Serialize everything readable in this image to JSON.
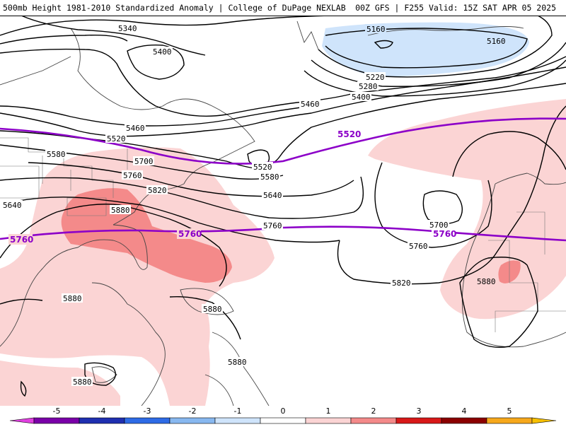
{
  "header": {
    "left": "500mb Height 1981-2010 Standardized Anomaly | College of DuPage NEXLAB",
    "right": "00Z GFS | F255 Valid: 15Z SAT APR 05 2025"
  },
  "contour_labels": [
    {
      "text": "5340"
    },
    {
      "text": "5400"
    },
    {
      "text": "5460"
    },
    {
      "text": "5520"
    },
    {
      "text": "5580"
    },
    {
      "text": "5700"
    },
    {
      "text": "5760"
    },
    {
      "text": "5820"
    },
    {
      "text": "5880"
    },
    {
      "text": "5640"
    },
    {
      "text": "5880"
    },
    {
      "text": "5880"
    },
    {
      "text": "5880"
    },
    {
      "text": "5880"
    },
    {
      "text": "5520"
    },
    {
      "text": "5580"
    },
    {
      "text": "5640"
    },
    {
      "text": "5760"
    },
    {
      "text": "5700"
    },
    {
      "text": "5760"
    },
    {
      "text": "5820"
    },
    {
      "text": "5460"
    },
    {
      "text": "5400"
    },
    {
      "text": "5280"
    },
    {
      "text": "5220"
    },
    {
      "text": "5160"
    },
    {
      "text": "5160"
    },
    {
      "text": "5880"
    }
  ],
  "thickness_labels": [
    {
      "text": "5520"
    },
    {
      "text": "5760"
    },
    {
      "text": "5760"
    },
    {
      "text": "5760"
    }
  ],
  "colorbar": {
    "ticks": [
      "-5",
      "-4",
      "-3",
      "-2",
      "-1",
      "0",
      "1",
      "2",
      "3",
      "4",
      "5"
    ],
    "colors": [
      "#7a00a8",
      "#1f2fb0",
      "#2e6be6",
      "#88b8f0",
      "#cfe4fb",
      "#ffffff",
      "#fbd4d4",
      "#f48a8a",
      "#d81818",
      "#8b0000",
      "#f7a81c"
    ],
    "end_left": "#e040e0",
    "end_right": "#f7c000"
  }
}
